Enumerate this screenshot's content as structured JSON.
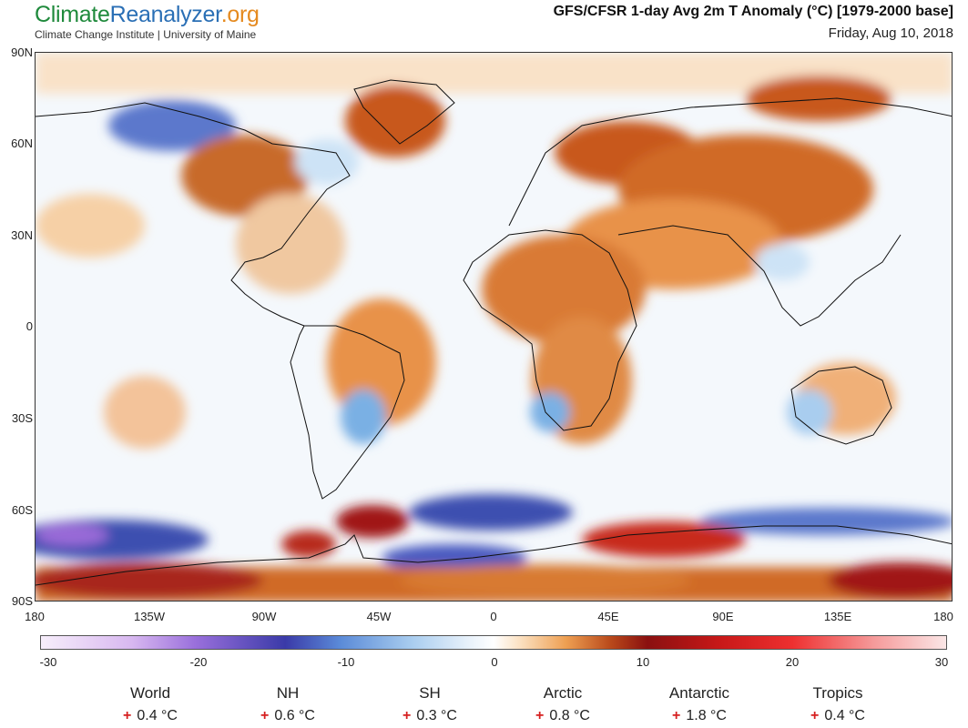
{
  "header": {
    "logo_part1": "Climate",
    "logo_part2": "Reanalyzer",
    "logo_part3": ".org",
    "org_line": "Climate Change Institute | University of Maine",
    "title": "GFS/CFSR 1-day Avg 2m T Anomaly (°C) [1979-2000 base]",
    "date": "Friday, Aug 10, 2018"
  },
  "map": {
    "lat_labels": [
      "90N",
      "60N",
      "30N",
      "0",
      "30S",
      "60S",
      "90S"
    ],
    "lon_labels": [
      "180",
      "135W",
      "90W",
      "45W",
      "0",
      "45E",
      "90E",
      "135E",
      "180"
    ],
    "colors": {
      "ocean_neutral": "#f4f8fc",
      "warm_light": "#f6d0a6",
      "warm_mid": "#e8924a",
      "warm_strong": "#c8581a",
      "warm_extreme": "#a01818",
      "cool_light": "#cde3f6",
      "cool_mid": "#7ab0e4",
      "cool_strong": "#3e4fb0",
      "cool_extreme": "#8a5ad0",
      "coastline": "#111111"
    }
  },
  "colorbar": {
    "tick_labels": [
      "-30",
      "-20",
      "-10",
      "0",
      "10",
      "20",
      "30"
    ]
  },
  "stats": [
    {
      "name": "World",
      "sign": "+",
      "value": "0.4 °C"
    },
    {
      "name": "NH",
      "sign": "+",
      "value": "0.6 °C"
    },
    {
      "name": "SH",
      "sign": "+",
      "value": "0.3 °C"
    },
    {
      "name": "Arctic",
      "sign": "+",
      "value": "0.8 °C"
    },
    {
      "name": "Antarctic",
      "sign": "+",
      "value": "1.8 °C"
    },
    {
      "name": "Tropics",
      "sign": "+",
      "value": "0.4 °C"
    }
  ]
}
